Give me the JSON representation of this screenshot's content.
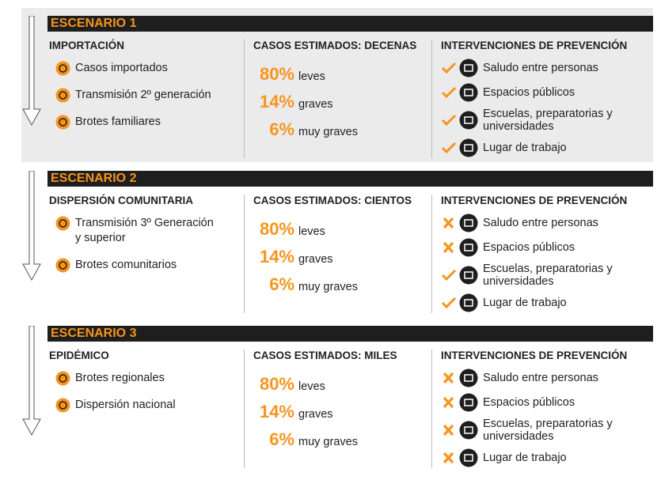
{
  "scenarios": [
    {
      "title": "ESCENARIO 1",
      "origin": {
        "heading": "IMPORTACIÓN",
        "items": [
          {
            "lines": [
              "Casos importados"
            ]
          },
          {
            "lines": [
              "Transmisión 2º generación"
            ]
          },
          {
            "lines": [
              "Brotes familiares"
            ]
          }
        ]
      },
      "cases": {
        "heading": "CASOS ESTIMADOS: DECENAS",
        "rows": [
          {
            "value": "80%",
            "label": "leves"
          },
          {
            "value": "14%",
            "label": "graves"
          },
          {
            "value": "6%",
            "label": "muy graves"
          }
        ]
      },
      "interventions": {
        "heading": "INTERVENCIONES DE PREVENCIÓN",
        "items": [
          {
            "lines": [
              "Saludo entre personas"
            ],
            "status": "check"
          },
          {
            "lines": [
              "Espacios públicos"
            ],
            "status": "check"
          },
          {
            "lines": [
              "Escuelas, preparatorias y",
              "universidades"
            ],
            "status": "check"
          },
          {
            "lines": [
              "Lugar de trabajo"
            ],
            "status": "check"
          }
        ]
      }
    },
    {
      "title": "ESCENARIO 2",
      "origin": {
        "heading": "DISPERSIÓN COMUNITARIA",
        "items": [
          {
            "lines": [
              "Transmisión 3º Generación",
              "y superior"
            ]
          },
          {
            "lines": [
              "Brotes comunitarios"
            ]
          }
        ]
      },
      "cases": {
        "heading": "CASOS ESTIMADOS: CIENTOS",
        "rows": [
          {
            "value": "80%",
            "label": "leves"
          },
          {
            "value": "14%",
            "label": "graves"
          },
          {
            "value": "6%",
            "label": "muy graves"
          }
        ]
      },
      "interventions": {
        "heading": "INTERVENCIONES DE PREVENCIÓN",
        "items": [
          {
            "lines": [
              "Saludo entre personas"
            ],
            "status": "cross"
          },
          {
            "lines": [
              "Espacios públicos"
            ],
            "status": "cross"
          },
          {
            "lines": [
              "Escuelas, preparatorias y",
              "universidades"
            ],
            "status": "check"
          },
          {
            "lines": [
              "Lugar de trabajo"
            ],
            "status": "check"
          }
        ]
      }
    },
    {
      "title": "ESCENARIO 3",
      "origin": {
        "heading": "EPIDÉMICO",
        "items": [
          {
            "lines": [
              "Brotes regionales"
            ]
          },
          {
            "lines": [
              "Dispersión nacional"
            ]
          }
        ]
      },
      "cases": {
        "heading": "CASOS ESTIMADOS: MILES",
        "rows": [
          {
            "value": "80%",
            "label": "leves"
          },
          {
            "value": "14%",
            "label": "graves"
          },
          {
            "value": "6%",
            "label": "muy graves"
          }
        ]
      },
      "interventions": {
        "heading": "INTERVENCIONES DE PREVENCIÓN",
        "items": [
          {
            "lines": [
              "Saludo entre personas"
            ],
            "status": "cross"
          },
          {
            "lines": [
              "Espacios públicos"
            ],
            "status": "cross"
          },
          {
            "lines": [
              "Escuelas, preparatorias y",
              "universidades"
            ],
            "status": "cross"
          },
          {
            "lines": [
              "Lugar de trabajo"
            ],
            "status": "cross"
          }
        ]
      }
    }
  ]
}
